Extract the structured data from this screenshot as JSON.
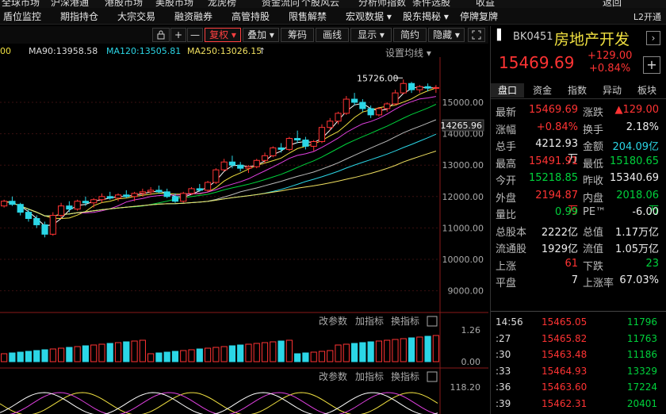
{
  "top_menu": [
    "全球市场",
    "沪深港通",
    "港股市场",
    "美股市场",
    "龙虎榜",
    "资金流向",
    "个股风云",
    "分析师指数",
    "条件选股",
    "收益",
    "返回"
  ],
  "second_menu": [
    "盾位监控",
    "期指持仓",
    "大宗交易",
    "融资融券",
    "高管持股",
    "限售解禁",
    "宏观数据",
    "股东揭秘",
    "停牌复牌"
  ],
  "second_menu_dropdowns": [
    "▾",
    "▾"
  ],
  "l2_label": "L2开通",
  "toolbar": {
    "lock_icon": "lock-icon",
    "plus": "+",
    "minus": "—",
    "fuquan": "复权",
    "dieja": "叠加",
    "choumap": "筹码",
    "huaxian": "画线",
    "xianshi": "显示",
    "jianyue": "简约",
    "yincang": "隐藏",
    "fullscreen_icon": "fullscreen-icon"
  },
  "ma_line": {
    "ma30": "00",
    "ma90": "MA90:13958.58",
    "ma120": "MA120:13505.81",
    "ma250": "MA250:13026.15",
    "arrow": "↑",
    "setting": "设置均线 ▾"
  },
  "colors": {
    "red": "#ff3333",
    "green": "#00d23c",
    "cyan": "#2bd6e6",
    "yellow": "#f0e040",
    "magenta": "#e040e0",
    "white": "#eeeeee",
    "bg": "#000000"
  },
  "chart_data": {
    "type": "candlestick",
    "y_ticks": [
      "15000.00",
      "14000.00",
      "13000.00",
      "12000.00",
      "11000.00",
      "10000.00",
      "9000.00"
    ],
    "y_values": [
      15000,
      14000,
      13000,
      12000,
      11000,
      10000,
      9000
    ],
    "current_price_label": "14265.96",
    "high_annotation": "15726.00",
    "volume_panel": {
      "top_label": "1.26",
      "bottom_label": "0.00",
      "controls": [
        "改参数",
        "加指标",
        "换指标"
      ]
    },
    "indicator_panel": {
      "top_label": "118.20",
      "controls": [
        "改参数",
        "加指标",
        "换指标"
      ]
    },
    "candles": [
      [
        11700,
        11900,
        11650,
        11850
      ],
      [
        11850,
        12000,
        11700,
        11750
      ],
      [
        11750,
        11800,
        11400,
        11500
      ],
      [
        11500,
        11600,
        11200,
        11300
      ],
      [
        11300,
        11400,
        11000,
        11100
      ],
      [
        11100,
        11200,
        10700,
        10800
      ],
      [
        10800,
        11500,
        10750,
        11400
      ],
      [
        11400,
        11800,
        11300,
        11700
      ],
      [
        11700,
        11850,
        11500,
        11600
      ],
      [
        11600,
        11900,
        11550,
        11850
      ],
      [
        11850,
        12000,
        11700,
        11800
      ],
      [
        11800,
        11950,
        11650,
        11900
      ],
      [
        11900,
        12100,
        11800,
        12000
      ],
      [
        12000,
        12150,
        11900,
        11950
      ],
      [
        11950,
        12100,
        11850,
        12050
      ],
      [
        12050,
        12200,
        11950,
        12000
      ],
      [
        12000,
        12150,
        11850,
        12100
      ],
      [
        12100,
        12250,
        12000,
        12150
      ],
      [
        12150,
        12300,
        12050,
        12200
      ],
      [
        12200,
        12350,
        12100,
        12150
      ],
      [
        12150,
        12250,
        11950,
        12000
      ],
      [
        12000,
        12100,
        11800,
        11850
      ],
      [
        11850,
        12150,
        11800,
        12100
      ],
      [
        12100,
        12300,
        12050,
        12250
      ],
      [
        12250,
        12400,
        12150,
        12200
      ],
      [
        12200,
        12500,
        12150,
        12450
      ],
      [
        12450,
        12900,
        12400,
        12850
      ],
      [
        12850,
        13200,
        12800,
        13100
      ],
      [
        13100,
        13300,
        12900,
        13000
      ],
      [
        13000,
        13100,
        12800,
        12900
      ],
      [
        12900,
        13000,
        12750,
        12950
      ],
      [
        12950,
        13200,
        12900,
        13150
      ],
      [
        13150,
        13400,
        13050,
        13300
      ],
      [
        13300,
        13600,
        13250,
        13550
      ],
      [
        13550,
        13700,
        13400,
        13500
      ],
      [
        13500,
        13900,
        13450,
        13850
      ],
      [
        13850,
        14100,
        13700,
        13800
      ],
      [
        13800,
        13900,
        13500,
        13600
      ],
      [
        13600,
        13800,
        13450,
        13750
      ],
      [
        13750,
        14300,
        13700,
        14200
      ],
      [
        14200,
        14500,
        14100,
        14400
      ],
      [
        14400,
        14700,
        14300,
        14650
      ],
      [
        14650,
        15200,
        14600,
        15100
      ],
      [
        15100,
        15300,
        14900,
        15000
      ],
      [
        15000,
        15100,
        14700,
        14800
      ],
      [
        14800,
        14900,
        14500,
        14600
      ],
      [
        14600,
        14850,
        14550,
        14800
      ],
      [
        14800,
        15000,
        14700,
        14950
      ],
      [
        14950,
        15400,
        14900,
        15300
      ],
      [
        15300,
        15726,
        15250,
        15600
      ],
      [
        15600,
        15650,
        15300,
        15400
      ],
      [
        15400,
        15550,
        15300,
        15500
      ],
      [
        15500,
        15600,
        15350,
        15450
      ],
      [
        15450,
        15550,
        15300,
        15470
      ]
    ]
  },
  "right_panel": {
    "code": "BK0451",
    "name": "房地产开发",
    "price": "15469.69",
    "change": "+129.00",
    "change_pct": "+0.84%",
    "tabs": [
      "盘口",
      "资金",
      "指数",
      "异动",
      "板块"
    ],
    "rows": [
      {
        "l1": "最新",
        "v1": "15469.69",
        "c1": "red",
        "l2": "涨跌",
        "v2": "▲129.00",
        "c2": "red"
      },
      {
        "l1": "涨幅",
        "v1": "+0.84%",
        "c1": "red",
        "l2": "换手",
        "v2": "2.18%",
        "c2": "white"
      },
      {
        "l1": "总手",
        "v1": "4212.93万",
        "c1": "white",
        "l2": "金额",
        "v2": "204.09亿",
        "c2": "cyan"
      },
      {
        "l1": "最高",
        "v1": "15491.91",
        "c1": "red",
        "l2": "最低",
        "v2": "15180.65",
        "c2": "green"
      },
      {
        "l1": "今开",
        "v1": "15218.85",
        "c1": "green",
        "l2": "昨收",
        "v2": "15340.69",
        "c2": "white"
      },
      {
        "l1": "外盘",
        "v1": "2194.87万",
        "c1": "red",
        "l2": "内盘",
        "v2": "2018.06万",
        "c2": "green"
      },
      {
        "l1": "量比",
        "v1": "0.99",
        "c1": "green",
        "l2": "PE™",
        "v2": "-6.00",
        "c2": "white"
      },
      {
        "l1": "总股本",
        "v1": "2222亿",
        "c1": "white",
        "l2": "总值",
        "v2": "1.17万亿",
        "c2": "white"
      },
      {
        "l1": "流通股",
        "v1": "1929亿",
        "c1": "white",
        "l2": "流值",
        "v2": "1.05万亿",
        "c2": "white"
      },
      {
        "l1": "上涨",
        "v1": "61",
        "c1": "red",
        "l2": "下跌",
        "v2": "23",
        "c2": "green"
      },
      {
        "l1": "平盘",
        "v1": "7",
        "c1": "white",
        "l2": "上涨率",
        "v2": "67.03%",
        "c2": "white"
      }
    ],
    "ticks": [
      {
        "t": "14:56",
        "p": "15465.05",
        "v": "11796"
      },
      {
        "t": ":27",
        "p": "15465.82",
        "v": "11763"
      },
      {
        "t": ":30",
        "p": "15463.48",
        "v": "11186"
      },
      {
        "t": ":33",
        "p": "15464.93",
        "v": "13329"
      },
      {
        "t": ":36",
        "p": "15463.60",
        "v": "17224"
      },
      {
        "t": ":39",
        "p": "15462.31",
        "v": "20401"
      }
    ]
  }
}
